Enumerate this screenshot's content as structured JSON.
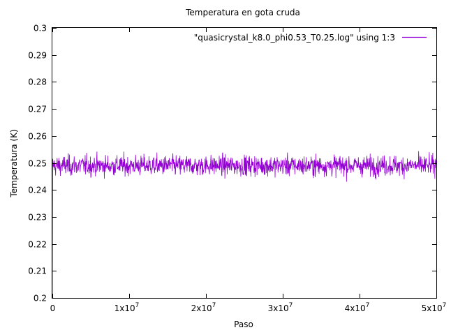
{
  "chart_data": {
    "type": "line",
    "title": "Temperatura en gota cruda",
    "xlabel": "Paso",
    "ylabel": "Temperatura (K)",
    "xlim": [
      0,
      50000000
    ],
    "ylim": [
      0.2,
      0.3
    ],
    "xticks": [
      {
        "value": 0,
        "mantissa": "0",
        "exp": ""
      },
      {
        "value": 10000000,
        "mantissa": "1x10",
        "exp": "7"
      },
      {
        "value": 20000000,
        "mantissa": "2x10",
        "exp": "7"
      },
      {
        "value": 30000000,
        "mantissa": "3x10",
        "exp": "7"
      },
      {
        "value": 40000000,
        "mantissa": "4x10",
        "exp": "7"
      },
      {
        "value": 50000000,
        "mantissa": "5x10",
        "exp": "7"
      }
    ],
    "yticks": [
      "0.2",
      "0.21",
      "0.22",
      "0.23",
      "0.24",
      "0.25",
      "0.26",
      "0.27",
      "0.28",
      "0.29",
      "0.3"
    ],
    "grid": false,
    "legend_position": "top-right",
    "series": [
      {
        "name": "\"quasicrystal_k8.0_phi0.53_T0.25.log\" using 1:3",
        "color": "#9400d3",
        "initial_point": [
          0,
          0.2
        ],
        "mean": 0.249,
        "range": [
          0.238,
          0.26
        ],
        "x_end": 50000000
      }
    ]
  }
}
